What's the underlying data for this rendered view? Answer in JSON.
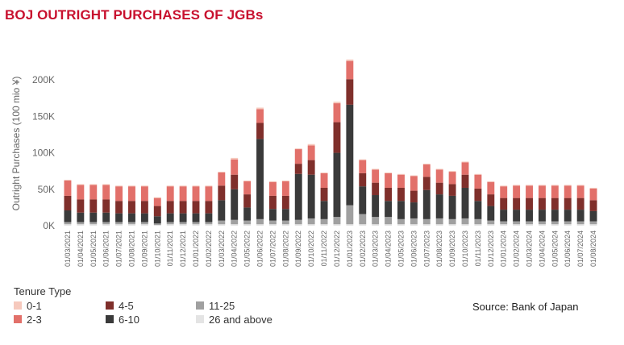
{
  "title": "BOJ OUTRIGHT PURCHASES OF JGBs",
  "source": "Source: Bank of Japan",
  "legend": {
    "title": "Tenure Type",
    "items": [
      {
        "label": "0-1",
        "color": "#f6c9bd"
      },
      {
        "label": "4-5",
        "color": "#7f2f2b"
      },
      {
        "label": "11-25",
        "color": "#a0a0a0"
      },
      {
        "label": "2-3",
        "color": "#e2706a"
      },
      {
        "label": "6-10",
        "color": "#3a3a3a"
      },
      {
        "label": "26 and above",
        "color": "#e4e4e4"
      }
    ]
  },
  "chart_data": {
    "type": "bar",
    "stacked": true,
    "ylabel": "Outright Purchases (100 mio ¥)",
    "ylim": [
      0,
      230000
    ],
    "yticks": [
      0,
      50000,
      100000,
      150000,
      200000
    ],
    "ytick_labels": [
      "0K",
      "50K",
      "100K",
      "150K",
      "200K"
    ],
    "grid": false,
    "categories": [
      "01/03/2021",
      "01/04/2021",
      "01/05/2021",
      "01/06/2021",
      "01/07/2021",
      "01/08/2021",
      "01/09/2021",
      "01/10/2021",
      "01/11/2021",
      "01/12/2021",
      "01/01/2022",
      "01/02/2022",
      "01/03/2022",
      "01/04/2022",
      "01/05/2022",
      "01/06/2022",
      "01/07/2022",
      "01/08/2022",
      "01/09/2022",
      "01/10/2022",
      "01/11/2022",
      "01/12/2022",
      "01/01/2023",
      "01/02/2023",
      "01/03/2023",
      "01/04/2023",
      "01/05/2023",
      "01/06/2023",
      "01/07/2023",
      "01/08/2023",
      "01/09/2023",
      "01/10/2023",
      "01/11/2023",
      "01/12/2023",
      "01/01/2024",
      "01/02/2024",
      "01/03/2024",
      "01/04/2024",
      "01/05/2024",
      "01/06/2024",
      "01/07/2024",
      "01/08/2024"
    ],
    "series": [
      {
        "name": "26 and above",
        "color": "#e4e4e4",
        "values": [
          2000,
          2000,
          2000,
          2000,
          2000,
          2000,
          2000,
          1000,
          2000,
          2000,
          2000,
          2000,
          2000,
          2000,
          2000,
          2000,
          2000,
          2000,
          2000,
          2000,
          2000,
          2000,
          2000,
          2000,
          2000,
          2000,
          2000,
          2000,
          2000,
          2000,
          2000,
          2000,
          2000,
          2000,
          2000,
          2000,
          2000,
          2000,
          2000,
          2000,
          2000,
          2000
        ]
      },
      {
        "name": "11-25",
        "color": "#a0a0a0",
        "values": [
          3000,
          3000,
          3000,
          3000,
          3000,
          3000,
          3000,
          2000,
          3000,
          3000,
          3000,
          3000,
          5000,
          6000,
          5000,
          7000,
          5000,
          5000,
          6000,
          8000,
          7000,
          10000,
          26000,
          14000,
          10000,
          10000,
          7000,
          8000,
          7000,
          8000,
          7000,
          8000,
          7000,
          5000,
          4000,
          4000,
          4000,
          4000,
          4000,
          4000,
          4000,
          4000
        ]
      },
      {
        "name": "6-10",
        "color": "#3a3a3a",
        "values": [
          16000,
          13000,
          13000,
          13000,
          12000,
          12000,
          12000,
          10000,
          12000,
          12000,
          12000,
          12000,
          28000,
          42000,
          18000,
          110000,
          16000,
          16000,
          63000,
          60000,
          25000,
          88000,
          138000,
          38000,
          30000,
          22000,
          25000,
          22000,
          40000,
          33000,
          32000,
          42000,
          25000,
          20000,
          16000,
          16000,
          16000,
          16000,
          16000,
          16000,
          16000,
          14000
        ]
      },
      {
        "name": "4-5",
        "color": "#7f2f2b",
        "values": [
          20000,
          18000,
          18000,
          18000,
          17000,
          17000,
          17000,
          14000,
          17000,
          17000,
          17000,
          17000,
          20000,
          20000,
          18000,
          22000,
          18000,
          18000,
          14000,
          20000,
          18000,
          42000,
          35000,
          18000,
          17000,
          18000,
          18000,
          16000,
          18000,
          16000,
          16000,
          18000,
          17000,
          16000,
          16000,
          16000,
          16000,
          16000,
          16000,
          16000,
          16000,
          15000
        ]
      },
      {
        "name": "2-3",
        "color": "#e2706a",
        "values": [
          21000,
          20000,
          20000,
          20000,
          20000,
          20000,
          20000,
          11000,
          20000,
          20000,
          20000,
          20000,
          18000,
          21000,
          18000,
          19000,
          19000,
          20000,
          20000,
          20000,
          20000,
          26000,
          25000,
          18000,
          18000,
          20000,
          18000,
          20000,
          17000,
          18000,
          17000,
          17000,
          19000,
          17000,
          16000,
          17000,
          17000,
          17000,
          17000,
          17000,
          17000,
          16000
        ]
      },
      {
        "name": "0-1",
        "color": "#f6c9bd",
        "values": [
          1000,
          1000,
          1000,
          1000,
          1000,
          1000,
          1000,
          1000,
          1000,
          1000,
          1000,
          1000,
          1000,
          2000,
          1000,
          2000,
          1000,
          1000,
          1000,
          2000,
          1000,
          2000,
          2000,
          1000,
          1000,
          1000,
          1000,
          1000,
          1000,
          1000,
          1000,
          1000,
          1000,
          1000,
          1000,
          1000,
          1000,
          1000,
          1000,
          1000,
          1000,
          1000
        ]
      }
    ]
  }
}
